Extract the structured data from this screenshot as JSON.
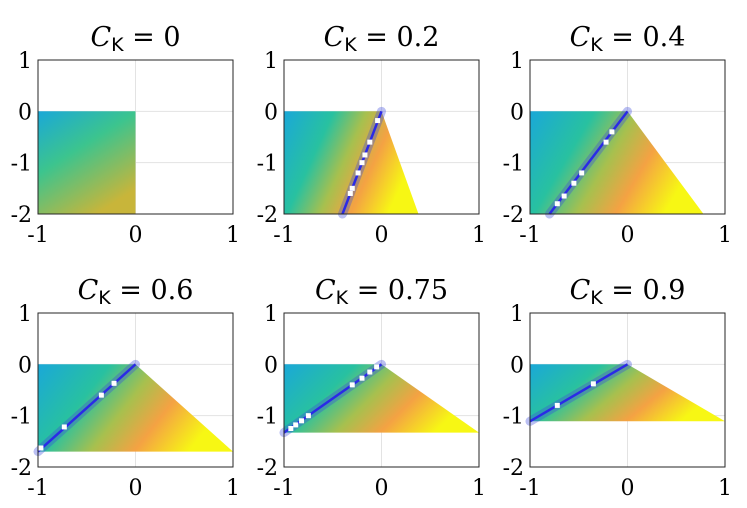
{
  "chart_data": [
    {
      "type": "heatmap",
      "title": "C_K = 0",
      "title_parts": {
        "var": "C",
        "sub": "K",
        "eq": " = 0"
      },
      "xlim": [
        -1,
        1
      ],
      "ylim": [
        -2,
        1
      ],
      "xticks": [
        "-1",
        "0",
        "1"
      ],
      "yticks": [
        "-2",
        "-1",
        "0",
        "1"
      ],
      "grid": true,
      "region": [
        [
          -1,
          0
        ],
        [
          0,
          0
        ],
        [
          0,
          -2
        ],
        [
          -1,
          -2
        ]
      ],
      "line": [],
      "markers": []
    },
    {
      "type": "heatmap",
      "title": "C_K = 0.2",
      "title_parts": {
        "var": "C",
        "sub": "K",
        "eq": " = 0.2"
      },
      "xlim": [
        -1,
        1
      ],
      "ylim": [
        -2,
        1
      ],
      "xticks": [
        "-1",
        "0",
        "1"
      ],
      "yticks": [
        "-2",
        "-1",
        "0",
        "1"
      ],
      "grid": true,
      "region": [
        [
          -1,
          0
        ],
        [
          0,
          0
        ],
        [
          0.38,
          -2
        ],
        [
          -1,
          -2
        ]
      ],
      "line": [
        [
          0,
          0
        ],
        [
          -0.4,
          -2
        ]
      ],
      "markers": [
        [
          -0.04,
          -0.18
        ],
        [
          -0.12,
          -0.6
        ],
        [
          -0.17,
          -0.85
        ],
        [
          -0.2,
          -1.0
        ],
        [
          -0.24,
          -1.2
        ],
        [
          -0.3,
          -1.5
        ],
        [
          -0.32,
          -1.6
        ]
      ]
    },
    {
      "type": "heatmap",
      "title": "C_K = 0.4",
      "title_parts": {
        "var": "C",
        "sub": "K",
        "eq": " = 0.4"
      },
      "xlim": [
        -1,
        1
      ],
      "ylim": [
        -2,
        1
      ],
      "xticks": [
        "-1",
        "0",
        "1"
      ],
      "yticks": [
        "-2",
        "-1",
        "0",
        "1"
      ],
      "grid": true,
      "region": [
        [
          -1,
          0
        ],
        [
          0,
          0
        ],
        [
          0.78,
          -2
        ],
        [
          -1,
          -2
        ]
      ],
      "line": [
        [
          0,
          0
        ],
        [
          -0.8,
          -2
        ]
      ],
      "markers": [
        [
          -0.16,
          -0.4
        ],
        [
          -0.22,
          -0.6
        ],
        [
          -0.47,
          -1.2
        ],
        [
          -0.55,
          -1.4
        ],
        [
          -0.65,
          -1.65
        ],
        [
          -0.72,
          -1.8
        ]
      ]
    },
    {
      "type": "heatmap",
      "title": "C_K = 0.6",
      "title_parts": {
        "var": "C",
        "sub": "K",
        "eq": " = 0.6"
      },
      "xlim": [
        -1,
        1
      ],
      "ylim": [
        -2,
        1
      ],
      "xticks": [
        "-1",
        "0",
        "1"
      ],
      "yticks": [
        "-2",
        "-1",
        "0",
        "1"
      ],
      "grid": true,
      "region": [
        [
          -1,
          0
        ],
        [
          0,
          0
        ],
        [
          1,
          -1.7
        ],
        [
          -1,
          -1.7
        ]
      ],
      "line": [
        [
          0,
          0
        ],
        [
          -1,
          -1.7
        ]
      ],
      "markers": [
        [
          -0.22,
          -0.37
        ],
        [
          -0.35,
          -0.6
        ],
        [
          -0.73,
          -1.22
        ],
        [
          -0.97,
          -1.63
        ]
      ]
    },
    {
      "type": "heatmap",
      "title": "C_K = 0.75",
      "title_parts": {
        "var": "C",
        "sub": "K",
        "eq": " = 0.75"
      },
      "xlim": [
        -1,
        1
      ],
      "ylim": [
        -2,
        1
      ],
      "xticks": [
        "-1",
        "0",
        "1"
      ],
      "yticks": [
        "-2",
        "-1",
        "0",
        "1"
      ],
      "grid": true,
      "region": [
        [
          -1,
          0
        ],
        [
          0,
          0
        ],
        [
          1,
          -1.33
        ],
        [
          -1,
          -1.33
        ]
      ],
      "line": [
        [
          0,
          0
        ],
        [
          -1,
          -1.33
        ]
      ],
      "markers": [
        [
          -0.05,
          -0.05
        ],
        [
          -0.12,
          -0.15
        ],
        [
          -0.2,
          -0.27
        ],
        [
          -0.3,
          -0.4
        ],
        [
          -0.75,
          -1.0
        ],
        [
          -0.82,
          -1.1
        ],
        [
          -0.88,
          -1.18
        ],
        [
          -0.93,
          -1.25
        ]
      ]
    },
    {
      "type": "heatmap",
      "title": "C_K = 0.9",
      "title_parts": {
        "var": "C",
        "sub": "K",
        "eq": " = 0.9"
      },
      "xlim": [
        -1,
        1
      ],
      "ylim": [
        -2,
        1
      ],
      "xticks": [
        "-1",
        "0",
        "1"
      ],
      "yticks": [
        "-2",
        "-1",
        "0",
        "1"
      ],
      "grid": true,
      "region": [
        [
          -1,
          0
        ],
        [
          0,
          0
        ],
        [
          1,
          -1.11
        ],
        [
          -1,
          -1.11
        ]
      ],
      "line": [
        [
          0,
          0
        ],
        [
          -1,
          -1.11
        ]
      ],
      "markers": [
        [
          -0.35,
          -0.38
        ],
        [
          -0.72,
          -0.8
        ]
      ]
    }
  ]
}
